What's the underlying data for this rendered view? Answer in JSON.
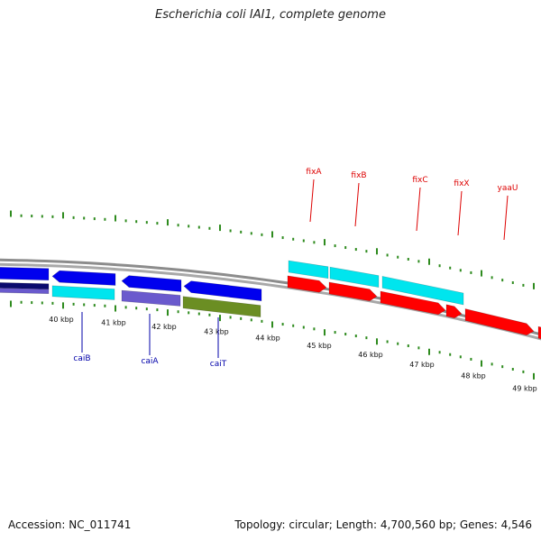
{
  "title": "Escherichia coli IAI1, complete genome",
  "footer": {
    "accession": "Accession: NC_011741",
    "summary": "Topology: circular; Length: 4,700,560 bp; Genes: 4,546"
  },
  "colors": {
    "backbone": "#8c8c8c",
    "tick": "#2e8b1e",
    "forward_gene": "#ff0000",
    "forward_cds": "#00e5ee",
    "reverse_gene": "#0000ee",
    "reverse_cds_cyan": "#00e5ee",
    "reverse_cds_navy": "#0a0a6e",
    "reverse_cds_purple": "#6a5acd",
    "reverse_cds_olive": "#6b8e23",
    "forward_label": "#dd0000",
    "reverse_label": "#0000aa"
  },
  "axis": {
    "tick_labels": [
      "40 kbp",
      "41 kbp",
      "42 kbp",
      "43 kbp",
      "44 kbp",
      "45 kbp",
      "46 kbp",
      "47 kbp",
      "48 kbp",
      "49 kbp"
    ]
  },
  "genes": {
    "forward_labels": [
      "fixA",
      "fixB",
      "fixC",
      "fixX",
      "yaaU"
    ],
    "reverse_labels": [
      "caiB",
      "caiA",
      "caiT"
    ]
  }
}
